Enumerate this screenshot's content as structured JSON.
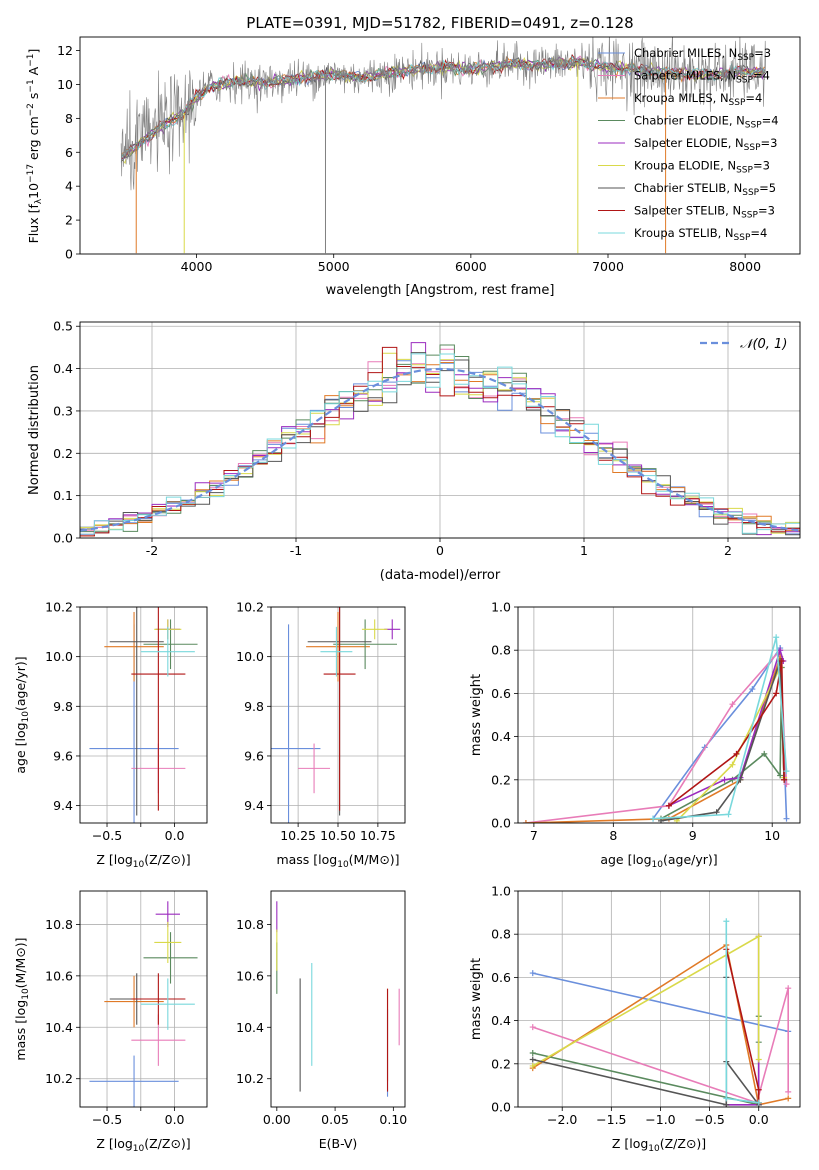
{
  "title": "PLATE=0391, MJD=51782, FIBERID=0491, z=0.128",
  "colors": {
    "chabrier_miles": "#6a8fdc",
    "salpeter_miles": "#e87cb8",
    "kroupa_miles": "#e07a27",
    "chabrier_elodie": "#5a8a5e",
    "salpeter_elodie": "#9b2bbf",
    "kroupa_elodie": "#d9d94a",
    "chabrier_stelib": "#555555",
    "salpeter_stelib": "#b01515",
    "kroupa_stelib": "#79d8dc",
    "data": "#808080"
  },
  "chart_data": [
    {
      "id": "spectrum",
      "type": "line",
      "xlabel": "wavelength [Angstrom, rest frame]",
      "ylabel": "Flux [f_λ 10^-17 erg cm^-2 s^-1 A^-1]",
      "xlim": [
        3150,
        8400
      ],
      "ylim": [
        0,
        12.8
      ],
      "xticks": [
        4000,
        5000,
        6000,
        7000,
        8000
      ],
      "yticks": [
        0,
        2,
        4,
        6,
        8,
        10,
        12
      ],
      "grid": false,
      "legend_position": "right",
      "legend": [
        {
          "label": "Chabrier MILES, N_SSP=3",
          "color_key": "chabrier_miles"
        },
        {
          "label": "Salpeter MILES, N_SSP=4",
          "color_key": "salpeter_miles"
        },
        {
          "label": "Kroupa MILES, N_SSP=4",
          "color_key": "kroupa_miles"
        },
        {
          "label": "Chabrier ELODIE, N_SSP=4",
          "color_key": "chabrier_elodie"
        },
        {
          "label": "Salpeter ELODIE, N_SSP=3",
          "color_key": "salpeter_elodie"
        },
        {
          "label": "Kroupa ELODIE, N_SSP=3",
          "color_key": "kroupa_elodie"
        },
        {
          "label": "Chabrier STELIB, N_SSP=5",
          "color_key": "chabrier_stelib"
        },
        {
          "label": "Salpeter STELIB, N_SSP=3",
          "color_key": "salpeter_stelib"
        },
        {
          "label": "Kroupa STELIB, N_SSP=4",
          "color_key": "kroupa_stelib"
        }
      ],
      "continuum": [
        [
          3450,
          5.6
        ],
        [
          3600,
          6.6
        ],
        [
          3750,
          7.6
        ],
        [
          3900,
          8.2
        ],
        [
          4000,
          9.3
        ],
        [
          4100,
          9.9
        ],
        [
          4300,
          10.2
        ],
        [
          4500,
          10.1
        ],
        [
          4800,
          10.4
        ],
        [
          5000,
          10.6
        ],
        [
          5200,
          10.4
        ],
        [
          5500,
          10.8
        ],
        [
          5800,
          11.0
        ],
        [
          6000,
          10.9
        ],
        [
          6300,
          11.2
        ],
        [
          6600,
          11.2
        ],
        [
          6800,
          11.3
        ],
        [
          7000,
          11.0
        ],
        [
          7200,
          10.9
        ],
        [
          7400,
          10.7
        ],
        [
          7600,
          10.6
        ],
        [
          7800,
          10.6
        ],
        [
          8000,
          10.8
        ],
        [
          8150,
          10.7
        ]
      ]
    },
    {
      "id": "residuals",
      "type": "histogram",
      "xlabel": "(data-model)/error",
      "ylabel": "Normed distribution",
      "xlim": [
        -2.5,
        2.5
      ],
      "ylim": [
        0,
        0.51
      ],
      "xticks": [
        -2,
        -1,
        0,
        1,
        2
      ],
      "yticks": [
        0.0,
        0.1,
        0.2,
        0.3,
        0.4,
        0.5
      ],
      "grid": true,
      "legend": [
        {
          "label": "𝒩(0, 1)",
          "style": "dashed",
          "color_key": "chabrier_miles"
        }
      ],
      "legend_position": "top-right",
      "bin_width": 0.1
    },
    {
      "id": "age_vs_z",
      "type": "errorbar",
      "xlabel": "Z [log10(Z/Z⊙)]",
      "ylabel": "age  [log10(age/yr)]",
      "xlim": [
        -0.7,
        0.24
      ],
      "ylim": [
        9.33,
        10.2
      ],
      "xticks": [
        -0.5,
        -0.25,
        0.0
      ],
      "xticklabels": [
        "−0.5",
        "",
        "0.0"
      ],
      "yticks": [
        9.4,
        9.6,
        9.8,
        10.0,
        10.2
      ],
      "grid": true,
      "points": [
        {
          "color_key": "chabrier_miles",
          "x": -0.3,
          "xerr": 0.33,
          "y": 9.63,
          "yerr": 0.5
        },
        {
          "color_key": "salpeter_miles",
          "x": -0.12,
          "xerr": 0.2,
          "y": 9.55,
          "yerr": 0.1
        },
        {
          "color_key": "kroupa_miles",
          "x": -0.3,
          "xerr": 0.22,
          "y": 10.04,
          "yerr": 0.14
        },
        {
          "color_key": "chabrier_elodie",
          "x": -0.03,
          "xerr": 0.2,
          "y": 10.05,
          "yerr": 0.1
        },
        {
          "color_key": "salpeter_elodie",
          "x": -0.05,
          "xerr": 0.09,
          "y": 10.11,
          "yerr": 0.04
        },
        {
          "color_key": "kroupa_elodie",
          "x": -0.05,
          "xerr": 0.1,
          "y": 10.11,
          "yerr": 0.04
        },
        {
          "color_key": "chabrier_stelib",
          "x": -0.28,
          "xerr": 0.2,
          "y": 10.06,
          "yerr": 0.7
        },
        {
          "color_key": "salpeter_stelib",
          "x": -0.12,
          "xerr": 0.2,
          "y": 9.93,
          "yerr": 0.55
        },
        {
          "color_key": "kroupa_stelib",
          "x": -0.05,
          "xerr": 0.2,
          "y": 10.02,
          "yerr": 0.1
        }
      ]
    },
    {
      "id": "age_vs_mass",
      "type": "errorbar",
      "xlabel": "mass [log10(M/M⊙)]",
      "ylabel": "",
      "xlim": [
        10.08,
        10.92
      ],
      "ylim": [
        9.33,
        10.2
      ],
      "xticks": [
        10.25,
        10.5,
        10.75
      ],
      "xticklabels": [
        "10.25",
        "10.50",
        "10.75"
      ],
      "yticks": [
        9.4,
        9.6,
        9.8,
        10.0,
        10.2
      ],
      "grid": true,
      "points": [
        {
          "color_key": "chabrier_miles",
          "x": 10.19,
          "xerr": 0.2,
          "y": 9.63,
          "yerr": 0.5
        },
        {
          "color_key": "salpeter_miles",
          "x": 10.35,
          "xerr": 0.1,
          "y": 9.55,
          "yerr": 0.1
        },
        {
          "color_key": "kroupa_miles",
          "x": 10.5,
          "xerr": 0.2,
          "y": 10.04,
          "yerr": 0.14
        },
        {
          "color_key": "chabrier_elodie",
          "x": 10.67,
          "xerr": 0.2,
          "y": 10.05,
          "yerr": 0.1
        },
        {
          "color_key": "salpeter_elodie",
          "x": 10.84,
          "xerr": 0.05,
          "y": 10.11,
          "yerr": 0.04
        },
        {
          "color_key": "kroupa_elodie",
          "x": 10.73,
          "xerr": 0.08,
          "y": 10.11,
          "yerr": 0.04
        },
        {
          "color_key": "chabrier_stelib",
          "x": 10.51,
          "xerr": 0.2,
          "y": 10.06,
          "yerr": 0.7
        },
        {
          "color_key": "salpeter_stelib",
          "x": 10.51,
          "xerr": 0.1,
          "y": 9.93,
          "yerr": 0.55
        },
        {
          "color_key": "kroupa_stelib",
          "x": 10.49,
          "xerr": 0.1,
          "y": 10.02,
          "yerr": 0.1
        }
      ]
    },
    {
      "id": "weight_vs_age",
      "type": "line",
      "xlabel": "age  [log10(age/yr)]",
      "ylabel": "mass weight",
      "xlim": [
        6.8,
        10.35
      ],
      "ylim": [
        0,
        1.0
      ],
      "xticks": [
        7,
        8,
        9,
        10
      ],
      "yticks": [
        0.0,
        0.2,
        0.4,
        0.6,
        0.8,
        1.0
      ],
      "grid": true,
      "series": [
        {
          "color_key": "chabrier_miles",
          "points": [
            [
              8.5,
              0.02
            ],
            [
              9.15,
              0.35
            ],
            [
              9.75,
              0.62
            ],
            [
              10.1,
              0.81
            ],
            [
              10.18,
              0.02
            ]
          ]
        },
        {
          "color_key": "salpeter_miles",
          "points": [
            [
              6.9,
              0.0
            ],
            [
              8.7,
              0.08
            ],
            [
              9.5,
              0.55
            ],
            [
              10.1,
              0.8
            ],
            [
              10.18,
              0.18
            ]
          ]
        },
        {
          "color_key": "kroupa_miles",
          "points": [
            [
              6.9,
              0.0
            ],
            [
              8.7,
              0.02
            ],
            [
              9.6,
              0.2
            ],
            [
              10.1,
              0.77
            ],
            [
              10.15,
              0.2
            ]
          ]
        },
        {
          "color_key": "chabrier_elodie",
          "points": [
            [
              8.6,
              0.02
            ],
            [
              9.5,
              0.2
            ],
            [
              9.9,
              0.32
            ],
            [
              10.1,
              0.22
            ],
            [
              10.12,
              0.72
            ]
          ]
        },
        {
          "color_key": "salpeter_elodie",
          "points": [
            [
              8.7,
              0.08
            ],
            [
              9.4,
              0.2
            ],
            [
              9.6,
              0.21
            ],
            [
              10.1,
              0.8
            ],
            [
              10.14,
              0.75
            ]
          ]
        },
        {
          "color_key": "kroupa_elodie",
          "points": [
            [
              8.8,
              0.01
            ],
            [
              9.5,
              0.27
            ],
            [
              10.1,
              0.72
            ],
            [
              10.15,
              0.21
            ]
          ]
        },
        {
          "color_key": "chabrier_stelib",
          "points": [
            [
              8.6,
              0.01
            ],
            [
              9.3,
              0.05
            ],
            [
              9.6,
              0.2
            ],
            [
              10.1,
              0.75
            ],
            [
              10.15,
              0.2
            ]
          ]
        },
        {
          "color_key": "salpeter_stelib",
          "points": [
            [
              8.7,
              0.08
            ],
            [
              9.55,
              0.32
            ],
            [
              10.05,
              0.6
            ],
            [
              10.12,
              0.75
            ],
            [
              10.15,
              0.2
            ]
          ]
        },
        {
          "color_key": "kroupa_stelib",
          "points": [
            [
              8.5,
              0.02
            ],
            [
              9.45,
              0.04
            ],
            [
              10.05,
              0.86
            ],
            [
              10.18,
              0.24
            ]
          ]
        }
      ]
    },
    {
      "id": "mass_vs_z",
      "type": "errorbar",
      "xlabel": "Z [log10(Z/Z⊙)]",
      "ylabel": "mass [log10(M/M⊙)]",
      "xlim": [
        -0.7,
        0.24
      ],
      "ylim": [
        10.09,
        10.93
      ],
      "xticks": [
        -0.5,
        -0.25,
        0.0
      ],
      "xticklabels": [
        "−0.5",
        "",
        "0.0"
      ],
      "yticks": [
        10.2,
        10.4,
        10.6,
        10.8
      ],
      "grid": true,
      "points": [
        {
          "color_key": "chabrier_miles",
          "x": -0.3,
          "xerr": 0.33,
          "y": 10.19,
          "yerr": 0.1
        },
        {
          "color_key": "salpeter_miles",
          "x": -0.12,
          "xerr": 0.2,
          "y": 10.35,
          "yerr": 0.1
        },
        {
          "color_key": "kroupa_miles",
          "x": -0.3,
          "xerr": 0.22,
          "y": 10.5,
          "yerr": 0.1
        },
        {
          "color_key": "chabrier_elodie",
          "x": -0.03,
          "xerr": 0.2,
          "y": 10.67,
          "yerr": 0.1
        },
        {
          "color_key": "salpeter_elodie",
          "x": -0.05,
          "xerr": 0.09,
          "y": 10.84,
          "yerr": 0.05
        },
        {
          "color_key": "kroupa_elodie",
          "x": -0.05,
          "xerr": 0.1,
          "y": 10.73,
          "yerr": 0.08
        },
        {
          "color_key": "chabrier_stelib",
          "x": -0.28,
          "xerr": 0.2,
          "y": 10.51,
          "yerr": 0.1
        },
        {
          "color_key": "salpeter_stelib",
          "x": -0.12,
          "xerr": 0.2,
          "y": 10.51,
          "yerr": 0.1
        },
        {
          "color_key": "kroupa_stelib",
          "x": -0.05,
          "xerr": 0.2,
          "y": 10.49,
          "yerr": 0.1
        }
      ]
    },
    {
      "id": "mass_vs_ebv",
      "type": "errorbar",
      "xlabel": "E(B-V)",
      "ylabel": "",
      "xlim": [
        -0.005,
        0.11
      ],
      "ylim": [
        10.09,
        10.93
      ],
      "xticks": [
        0.0,
        0.05,
        0.1
      ],
      "xticklabels": [
        "0.00",
        "0.05",
        "0.10"
      ],
      "yticks": [
        10.2,
        10.4,
        10.6,
        10.8
      ],
      "grid": false,
      "points": [
        {
          "color_key": "chabrier_miles",
          "x": 0.095,
          "xerr": 0,
          "y": 10.3,
          "yerr": 0.17
        },
        {
          "color_key": "salpeter_miles",
          "x": 0.105,
          "xerr": 0,
          "y": 10.44,
          "yerr": 0.11
        },
        {
          "color_key": "kroupa_miles",
          "x": 0.095,
          "xerr": 0,
          "y": 10.37,
          "yerr": 0.18
        },
        {
          "color_key": "chabrier_elodie",
          "x": 0.0,
          "xerr": 0,
          "y": 10.63,
          "yerr": 0.1
        },
        {
          "color_key": "salpeter_elodie",
          "x": 0.0,
          "xerr": 0,
          "y": 10.83,
          "yerr": 0.06
        },
        {
          "color_key": "kroupa_elodie",
          "x": 0.0,
          "xerr": 0,
          "y": 10.7,
          "yerr": 0.08
        },
        {
          "color_key": "chabrier_stelib",
          "x": 0.02,
          "xerr": 0,
          "y": 10.37,
          "yerr": 0.22
        },
        {
          "color_key": "salpeter_stelib",
          "x": 0.095,
          "xerr": 0,
          "y": 10.35,
          "yerr": 0.2
        },
        {
          "color_key": "kroupa_stelib",
          "x": 0.03,
          "xerr": 0,
          "y": 10.45,
          "yerr": 0.2
        }
      ]
    },
    {
      "id": "weight_vs_z",
      "type": "line",
      "xlabel": "Z [log10(Z/Z⊙)]",
      "ylabel": "mass weight",
      "xlim": [
        -2.45,
        0.42
      ],
      "ylim": [
        0,
        1.0
      ],
      "xticks": [
        -2.0,
        -1.5,
        -1.0,
        -0.5,
        0.0
      ],
      "xticklabels": [
        "−2.0",
        "−1.5",
        "−1.0",
        "−0.5",
        "0.0"
      ],
      "yticks": [
        0.0,
        0.2,
        0.4,
        0.6,
        0.8,
        1.0
      ],
      "grid": true,
      "series": [
        {
          "color_key": "chabrier_miles",
          "points": [
            [
              -2.3,
              0.62
            ],
            [
              0.3,
              0.35
            ]
          ]
        },
        {
          "color_key": "salpeter_miles",
          "points": [
            [
              -2.3,
              0.37
            ],
            [
              -0.02,
              0.02
            ],
            [
              0.3,
              0.55
            ],
            [
              0.3,
              0.07
            ]
          ]
        },
        {
          "color_key": "kroupa_miles",
          "points": [
            [
              -2.3,
              0.18
            ],
            [
              -0.33,
              0.75
            ],
            [
              0.0,
              0.01
            ],
            [
              0.3,
              0.04
            ]
          ]
        },
        {
          "color_key": "chabrier_elodie",
          "points": [
            [
              -2.3,
              0.25
            ],
            [
              0.0,
              0.01
            ],
            [
              0.0,
              0.42
            ],
            [
              0.0,
              0.3
            ]
          ]
        },
        {
          "color_key": "salpeter_elodie",
          "points": [
            [
              -0.33,
              0.01
            ],
            [
              0.0,
              0.01
            ],
            [
              0.0,
              0.79
            ]
          ]
        },
        {
          "color_key": "kroupa_elodie",
          "points": [
            [
              -2.3,
              0.19
            ],
            [
              0.0,
              0.79
            ],
            [
              0.0,
              0.22
            ]
          ]
        },
        {
          "color_key": "chabrier_stelib",
          "points": [
            [
              -2.3,
              0.22
            ],
            [
              -0.33,
              0.01
            ],
            [
              -0.33,
              0.6
            ],
            [
              -0.33,
              0.21
            ],
            [
              0.0,
              0.01
            ]
          ]
        },
        {
          "color_key": "salpeter_stelib",
          "points": [
            [
              -0.33,
              0.73
            ],
            [
              0.0,
              0.08
            ],
            [
              0.0,
              0.02
            ]
          ]
        },
        {
          "color_key": "kroupa_stelib",
          "points": [
            [
              -0.33,
              0.86
            ],
            [
              -0.33,
              0.04
            ],
            [
              0.0,
              0.02
            ]
          ]
        }
      ]
    }
  ]
}
